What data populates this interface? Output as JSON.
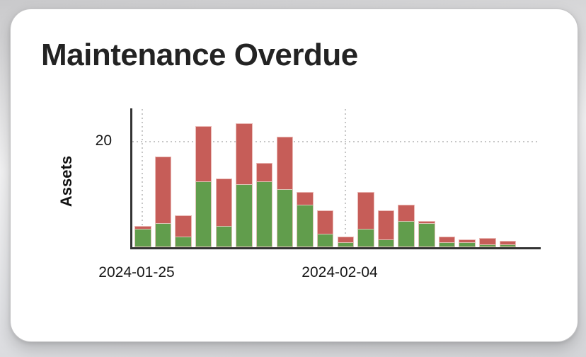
{
  "card": {
    "title": "Maintenance Overdue"
  },
  "chart_data": {
    "type": "bar",
    "stacked": true,
    "title": "Maintenance Overdue",
    "xlabel": "",
    "ylabel": "Assets",
    "x": [
      "2024-01-25",
      "2024-01-26",
      "2024-01-27",
      "2024-01-28",
      "2024-01-29",
      "2024-01-30",
      "2024-01-31",
      "2024-02-01",
      "2024-02-02",
      "2024-02-03",
      "2024-02-04",
      "2024-02-05",
      "2024-02-06",
      "2024-02-07",
      "2024-02-08",
      "2024-02-09",
      "2024-02-10",
      "2024-02-11",
      "2024-02-12"
    ],
    "series": [
      {
        "name": "green",
        "color": "#619d4c",
        "values": [
          3.5,
          4.5,
          2,
          12.5,
          4,
          12,
          12.5,
          11,
          8,
          2.5,
          1,
          3.5,
          1.5,
          5,
          4.5,
          1,
          1,
          0.5,
          0.5
        ]
      },
      {
        "name": "red",
        "color": "#c65d58",
        "values": [
          0.5,
          12.75,
          4,
          10.5,
          9,
          11.5,
          3.5,
          10,
          2.5,
          4.5,
          1,
          7,
          5.5,
          3,
          0.5,
          1,
          0.5,
          1.25,
          0.75
        ]
      }
    ],
    "ylim": [
      0,
      26
    ],
    "y_ticks": [
      "20"
    ],
    "x_ticks": [
      "2024-01-25",
      "2024-02-04"
    ],
    "grid": "dotted gridlines only at tick positions",
    "legend": "none",
    "bar_edge_color": "rgba(241,202,199,0.85)"
  },
  "colors": {
    "green_bar": "#619d4c",
    "red_bar": "#c65d58",
    "axis": "#333333",
    "gridline": "#c6c6c6",
    "card_background": "#ffffff",
    "page_background": "#e2e3e6",
    "title_text": "#232323"
  }
}
